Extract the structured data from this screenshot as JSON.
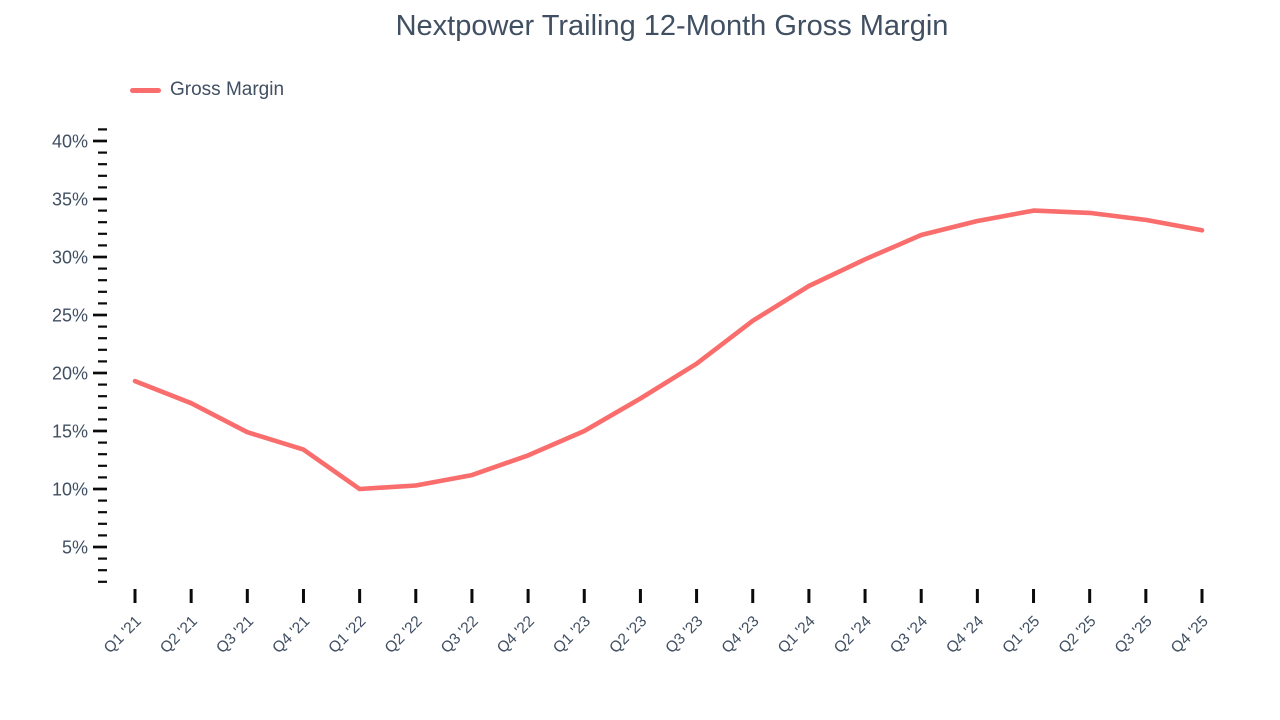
{
  "colors": {
    "text": "#404f62",
    "tick": "#0b0b0b",
    "line": "#f96d6d",
    "background": "#ffffff"
  },
  "legend": {
    "position": "top-left"
  },
  "chart_data": {
    "type": "line",
    "title": "Nextpower Trailing 12-Month Gross Margin",
    "x": [
      "Q1 '21",
      "Q2 '21",
      "Q3 '21",
      "Q4 '21",
      "Q1 '22",
      "Q2 '22",
      "Q3 '22",
      "Q4 '22",
      "Q1 '23",
      "Q2 '23",
      "Q3 '23",
      "Q4 '23",
      "Q1 '24",
      "Q2 '24",
      "Q3 '24",
      "Q4 '24",
      "Q1 '25",
      "Q2 '25",
      "Q3 '25",
      "Q4 '25"
    ],
    "series": [
      {
        "name": "Gross Margin",
        "color": "#f96d6d",
        "values": [
          19.3,
          17.4,
          14.9,
          13.4,
          10.0,
          10.3,
          11.2,
          12.9,
          15.0,
          17.8,
          20.8,
          24.5,
          27.5,
          29.8,
          31.9,
          33.1,
          34.0,
          33.8,
          33.2,
          32.3
        ]
      }
    ],
    "xlabel": "",
    "ylabel": "",
    "yticks_major": [
      5,
      10,
      15,
      20,
      25,
      30,
      35,
      40
    ],
    "ytick_suffix": "%",
    "yticks_minor_step": 1,
    "ylim": [
      1.5,
      41.5
    ],
    "grid": false,
    "legend_position": "top-left"
  }
}
